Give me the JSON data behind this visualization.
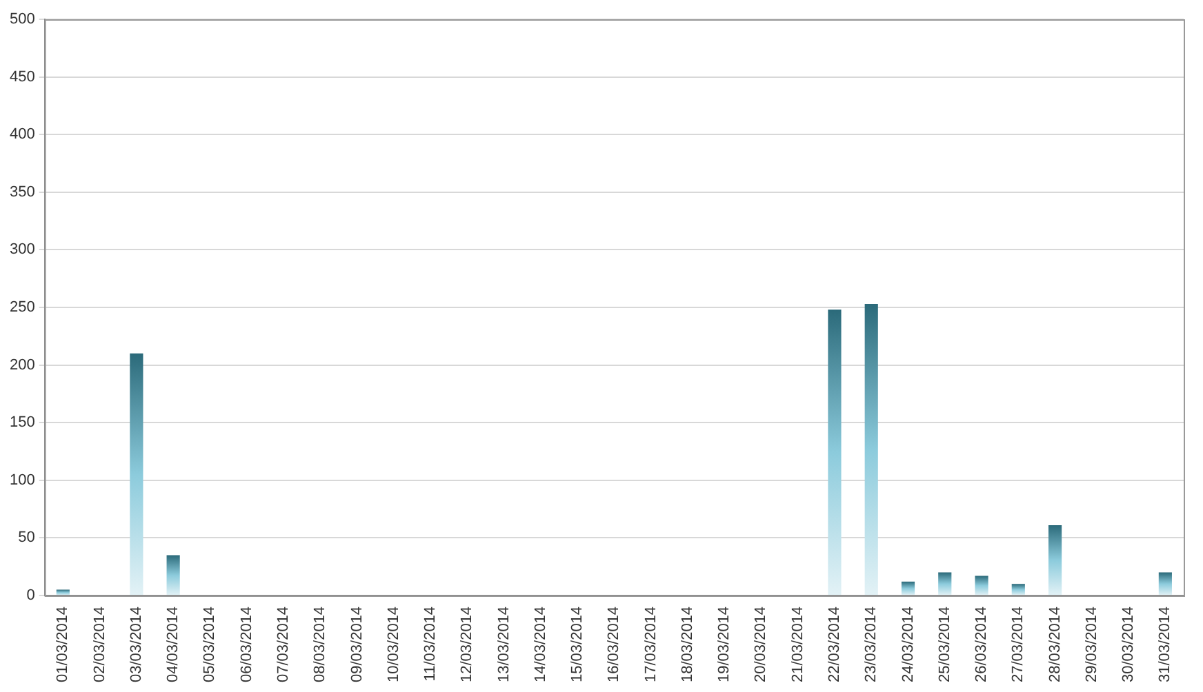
{
  "chart_data": {
    "type": "bar",
    "categories": [
      "01/03/2014",
      "02/03/2014",
      "03/03/2014",
      "04/03/2014",
      "05/03/2014",
      "06/03/2014",
      "07/03/2014",
      "08/03/2014",
      "09/03/2014",
      "10/03/2014",
      "11/03/2014",
      "12/03/2014",
      "13/03/2014",
      "14/03/2014",
      "15/03/2014",
      "16/03/2014",
      "17/03/2014",
      "18/03/2014",
      "19/03/2014",
      "20/03/2014",
      "21/03/2014",
      "22/03/2014",
      "23/03/2014",
      "24/03/2014",
      "25/03/2014",
      "26/03/2014",
      "27/03/2014",
      "28/03/2014",
      "29/03/2014",
      "30/03/2014",
      "31/03/2014"
    ],
    "values": [
      5,
      0,
      210,
      35,
      0,
      0,
      0,
      0,
      0,
      0,
      0,
      0,
      0,
      0,
      0,
      0,
      0,
      0,
      0,
      0,
      0,
      248,
      253,
      12,
      20,
      17,
      10,
      61,
      0,
      0,
      20
    ],
    "color": "#2b6a7a",
    "ylim": [
      0,
      500
    ],
    "yticks": [
      0,
      50,
      100,
      150,
      200,
      250,
      300,
      350,
      400,
      450,
      500
    ],
    "grid": "y",
    "legend": false
  }
}
